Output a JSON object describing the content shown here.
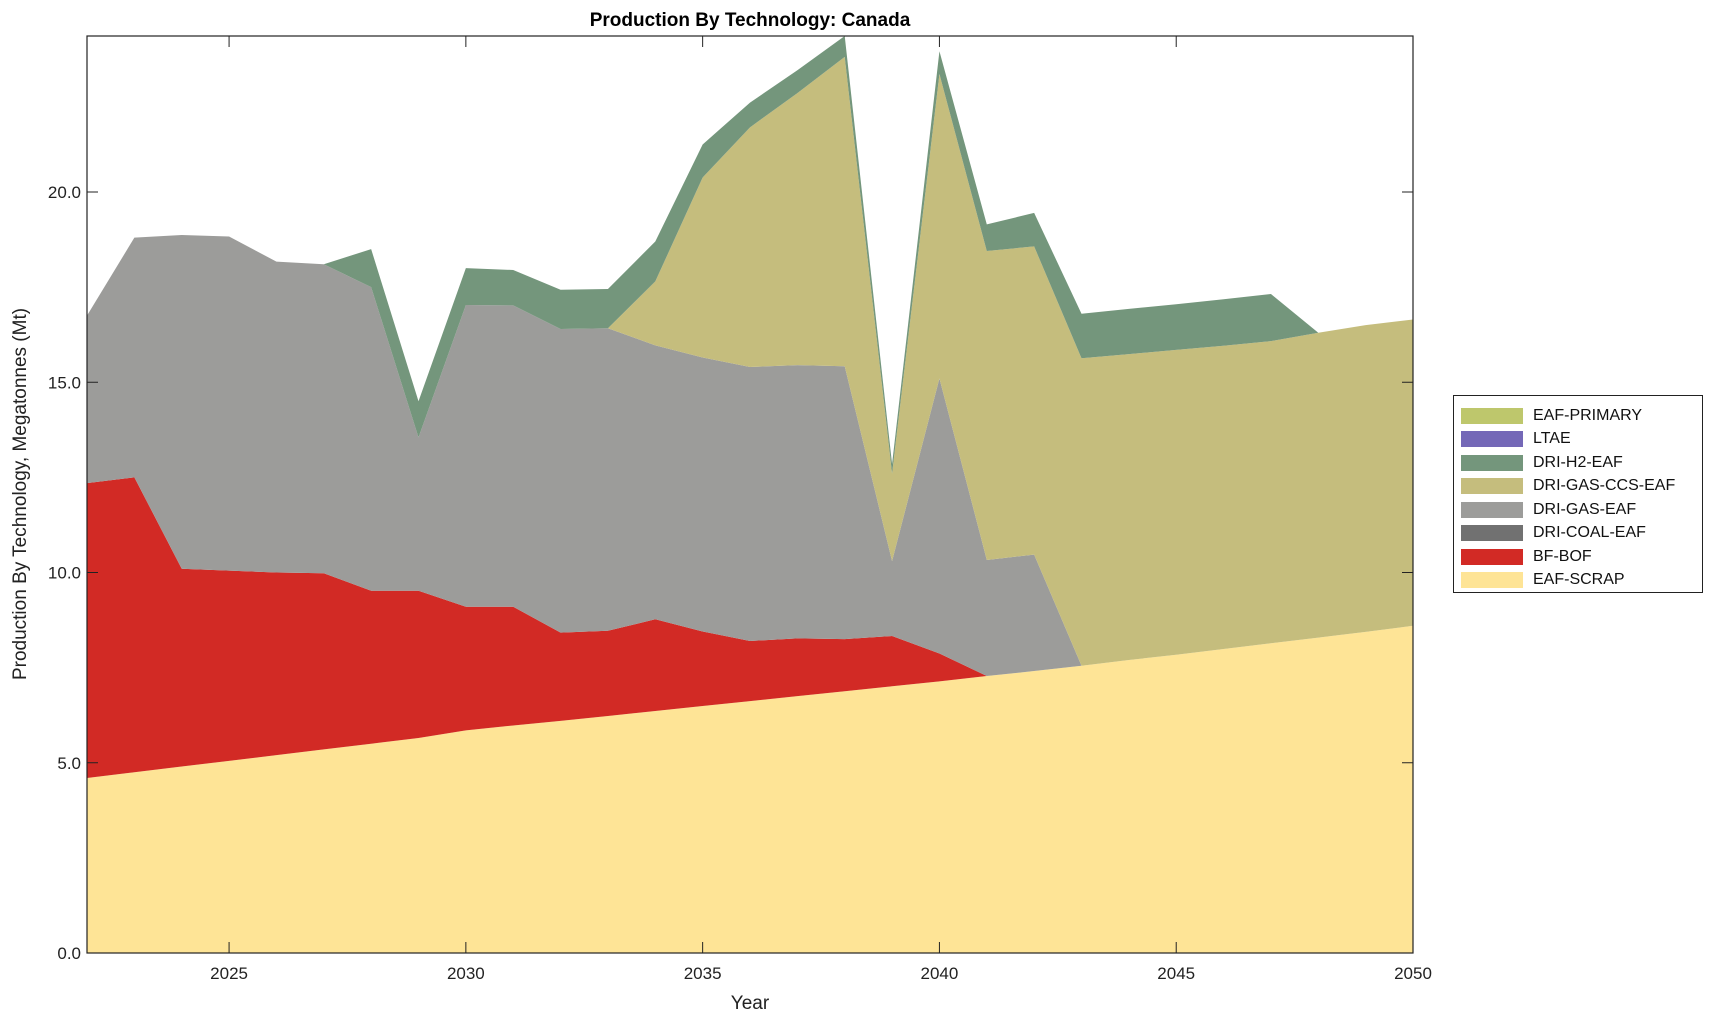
{
  "chart_data": {
    "type": "area",
    "stacked": true,
    "title": "Production By Technology: Canada",
    "xlabel": "Year",
    "ylabel": "Production By Technology, Megatonnes (Mt)",
    "xlim": [
      2022,
      2050
    ],
    "ylim": [
      0,
      24.1
    ],
    "x": [
      2022,
      2023,
      2024,
      2025,
      2026,
      2027,
      2028,
      2029,
      2030,
      2031,
      2032,
      2033,
      2034,
      2035,
      2036,
      2037,
      2038,
      2039,
      2040,
      2041,
      2042,
      2043,
      2044,
      2045,
      2046,
      2047,
      2048,
      2049,
      2050
    ],
    "xticks": [
      2025,
      2030,
      2035,
      2040,
      2045,
      2050
    ],
    "xtick_labels": [
      "2025",
      "2030",
      "2035",
      "2040",
      "2045",
      "2050"
    ],
    "yticks": [
      0,
      5,
      10,
      15,
      20
    ],
    "ytick_labels": [
      "0.0",
      "5.0",
      "10.0",
      "15.0",
      "20.0"
    ],
    "grid": false,
    "legend_position": "right",
    "series": [
      {
        "name": "EAF-SCRAP",
        "color": "#fee496",
        "values": [
          4.6,
          4.75,
          4.9,
          5.05,
          5.2,
          5.35,
          5.5,
          5.65,
          5.85,
          5.98,
          6.1,
          6.23,
          6.36,
          6.49,
          6.62,
          6.75,
          6.88,
          7.01,
          7.14,
          7.28,
          7.41,
          7.55,
          7.7,
          7.84,
          7.99,
          8.14,
          8.29,
          8.44,
          8.6
        ]
      },
      {
        "name": "BF-BOF",
        "color": "#d22a25",
        "values": [
          7.75,
          7.75,
          5.2,
          5.0,
          4.8,
          4.63,
          4.02,
          3.87,
          3.25,
          3.12,
          2.32,
          2.24,
          2.41,
          1.96,
          1.58,
          1.52,
          1.37,
          1.32,
          0.73,
          0,
          0,
          0,
          0,
          0,
          0,
          0,
          0,
          0,
          0
        ]
      },
      {
        "name": "DRI-COAL-EAF",
        "color": "#717171",
        "values": [
          0,
          0,
          0,
          0,
          0,
          0,
          0,
          0,
          0,
          0,
          0,
          0,
          0,
          0,
          0,
          0,
          0,
          0,
          0,
          0,
          0,
          0,
          0,
          0,
          0,
          0,
          0,
          0,
          0
        ]
      },
      {
        "name": "DRI-GAS-EAF",
        "color": "#9c9c9a",
        "values": [
          4.4,
          6.3,
          8.77,
          8.78,
          8.17,
          8.12,
          7.98,
          4.03,
          7.93,
          7.92,
          7.98,
          7.95,
          7.2,
          7.2,
          7.2,
          7.18,
          7.17,
          1.97,
          7.23,
          3.05,
          3.06,
          0,
          0,
          0,
          0,
          0,
          0,
          0,
          0
        ]
      },
      {
        "name": "DRI-GAS-CCS-EAF",
        "color": "#c5bd7d",
        "values": [
          0,
          0,
          0,
          0,
          0,
          0,
          0,
          0,
          0,
          0,
          0,
          0,
          1.68,
          4.73,
          6.3,
          7.15,
          8.13,
          2.3,
          8.0,
          8.12,
          8.1,
          8.08,
          8.04,
          8.01,
          7.97,
          7.94,
          8.01,
          8.06,
          8.05
        ]
      },
      {
        "name": "DRI-H2-EAF",
        "color": "#74967c",
        "values": [
          0,
          0,
          0,
          0,
          0,
          0,
          1.0,
          0.95,
          0.97,
          0.93,
          1.03,
          1.03,
          1.05,
          0.87,
          0.65,
          0.6,
          0.55,
          0.25,
          0.6,
          0.7,
          0.88,
          1.17,
          1.19,
          1.2,
          1.22,
          1.24,
          0,
          0,
          0
        ]
      },
      {
        "name": "LTAE",
        "color": "#7468b7",
        "values": [
          0,
          0,
          0,
          0,
          0,
          0,
          0,
          0,
          0,
          0,
          0,
          0,
          0,
          0,
          0,
          0,
          0,
          0,
          0,
          0,
          0,
          0,
          0,
          0,
          0,
          0,
          0,
          0,
          0
        ]
      },
      {
        "name": "EAF-PRIMARY",
        "color": "#bec76c",
        "values": [
          0,
          0,
          0,
          0,
          0,
          0,
          0,
          0,
          0,
          0,
          0,
          0,
          0,
          0,
          0,
          0,
          0,
          0,
          0,
          0,
          0,
          0,
          0,
          0,
          0,
          0,
          0,
          0,
          0
        ]
      }
    ],
    "legend": [
      "EAF-PRIMARY",
      "LTAE",
      "DRI-H2-EAF",
      "DRI-GAS-CCS-EAF",
      "DRI-GAS-EAF",
      "DRI-COAL-EAF",
      "BF-BOF",
      "EAF-SCRAP"
    ]
  }
}
